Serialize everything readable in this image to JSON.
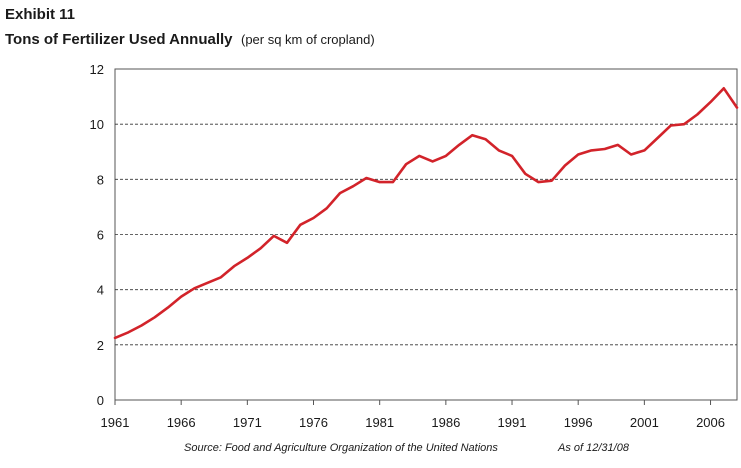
{
  "header": {
    "exhibit": "Exhibit 11",
    "title": "Tons of Fertilizer Used Annually",
    "subtitle": "(per sq km of cropland)"
  },
  "footer": {
    "source": "Source:  Food and Agriculture Organization of the United Nations",
    "as_of": "As of 12/31/08"
  },
  "chart_data": {
    "type": "line",
    "title": "Tons of Fertilizer Used Annually",
    "subtitle": "(per sq km of cropland)",
    "xlabel": "",
    "ylabel": "",
    "xlim": [
      1961,
      2008
    ],
    "ylim": [
      0,
      12
    ],
    "x_ticks": [
      1961,
      1966,
      1971,
      1976,
      1981,
      1986,
      1991,
      1996,
      2001,
      2006
    ],
    "y_ticks": [
      0,
      2,
      4,
      6,
      8,
      10,
      12
    ],
    "grid": "horizontal dashed",
    "legend": "none",
    "line_color": "#d2232a",
    "series": [
      {
        "x": [
          1961,
          1962,
          1963,
          1964,
          1965,
          1966,
          1967,
          1968,
          1969,
          1970,
          1971,
          1972,
          1973,
          1974,
          1975,
          1976,
          1977,
          1978,
          1979,
          1980,
          1981,
          1982,
          1983,
          1984,
          1985,
          1986,
          1987,
          1988,
          1989,
          1990,
          1991,
          1992,
          1993,
          1994,
          1995,
          1996,
          1997,
          1998,
          1999,
          2000,
          2001,
          2002,
          2003,
          2004,
          2005,
          2006,
          2007,
          2008
        ],
        "values": [
          2.25,
          2.45,
          2.7,
          3.0,
          3.35,
          3.75,
          4.05,
          4.25,
          4.45,
          4.85,
          5.15,
          5.5,
          5.95,
          5.7,
          6.35,
          6.6,
          6.95,
          7.5,
          7.75,
          8.05,
          7.9,
          7.9,
          8.55,
          8.85,
          8.65,
          8.85,
          9.25,
          9.6,
          9.45,
          9.05,
          8.85,
          8.2,
          7.9,
          7.95,
          8.5,
          8.9,
          9.05,
          9.1,
          9.25,
          8.9,
          9.05,
          9.5,
          9.95,
          10.0,
          10.35,
          10.8,
          11.3,
          10.6
        ]
      }
    ]
  }
}
